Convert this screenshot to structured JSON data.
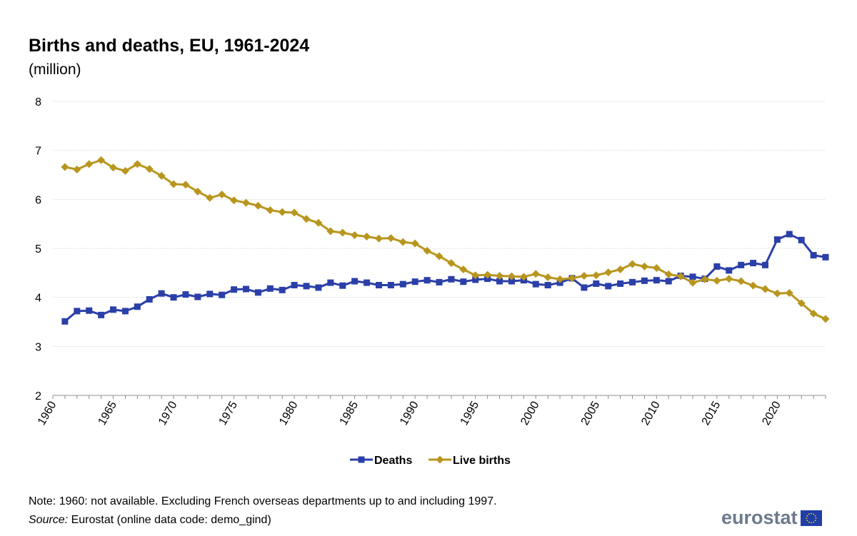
{
  "title": "Births and deaths, EU, 1961-2024",
  "subtitle": "(million)",
  "note": "Note: 1960: not available. Excluding French overseas departments up to and including 1997.",
  "source": {
    "label": "Source:",
    "text": " Eurostat (online data code: demo_gind)"
  },
  "logo": {
    "wordmark": "eurostat"
  },
  "colors": {
    "deaths": "#2b3fa8",
    "live_births": "#b8961e",
    "grid": "#d9d9d9",
    "axis": "#8c8c8c",
    "flag_blue": "#1f3ea8",
    "flag_star": "#ffd400"
  },
  "chart_data": {
    "type": "line",
    "title": "Births and deaths, EU, 1961-2024",
    "subtitle": "(million)",
    "xlim": [
      1960,
      2024
    ],
    "ylim": [
      2,
      8
    ],
    "yticks": [
      2,
      3,
      4,
      5,
      6,
      7,
      8
    ],
    "xticks": [
      1960,
      1965,
      1970,
      1975,
      1980,
      1985,
      1990,
      1995,
      2000,
      2005,
      2010,
      2015,
      2020
    ],
    "grid": true,
    "legend_position": "bottom",
    "x": [
      1961,
      1962,
      1963,
      1964,
      1965,
      1966,
      1967,
      1968,
      1969,
      1970,
      1971,
      1972,
      1973,
      1974,
      1975,
      1976,
      1977,
      1978,
      1979,
      1980,
      1981,
      1982,
      1983,
      1984,
      1985,
      1986,
      1987,
      1988,
      1989,
      1990,
      1991,
      1992,
      1993,
      1994,
      1995,
      1996,
      1997,
      1998,
      1999,
      2000,
      2001,
      2002,
      2003,
      2004,
      2005,
      2006,
      2007,
      2008,
      2009,
      2010,
      2011,
      2012,
      2013,
      2014,
      2015,
      2016,
      2017,
      2018,
      2019,
      2020,
      2021,
      2022,
      2023,
      2024
    ],
    "series": [
      {
        "name": "Deaths",
        "marker": "square",
        "values": [
          3.51,
          3.72,
          3.73,
          3.64,
          3.75,
          3.72,
          3.81,
          3.96,
          4.08,
          4.0,
          4.06,
          4.01,
          4.07,
          4.05,
          4.16,
          4.17,
          4.1,
          4.18,
          4.15,
          4.25,
          4.23,
          4.2,
          4.3,
          4.24,
          4.33,
          4.3,
          4.25,
          4.25,
          4.27,
          4.32,
          4.35,
          4.31,
          4.37,
          4.32,
          4.36,
          4.38,
          4.33,
          4.33,
          4.35,
          4.27,
          4.25,
          4.3,
          4.39,
          4.2,
          4.28,
          4.23,
          4.28,
          4.31,
          4.34,
          4.35,
          4.33,
          4.44,
          4.42,
          4.38,
          4.63,
          4.55,
          4.66,
          4.7,
          4.66,
          5.18,
          5.29,
          5.17,
          4.86,
          4.82
        ]
      },
      {
        "name": "Live births",
        "marker": "diamond",
        "values": [
          6.66,
          6.61,
          6.72,
          6.8,
          6.65,
          6.58,
          6.72,
          6.62,
          6.48,
          6.31,
          6.3,
          6.16,
          6.03,
          6.1,
          5.98,
          5.93,
          5.87,
          5.78,
          5.74,
          5.73,
          5.6,
          5.52,
          5.35,
          5.32,
          5.27,
          5.24,
          5.2,
          5.21,
          5.13,
          5.1,
          4.95,
          4.84,
          4.7,
          4.57,
          4.45,
          4.46,
          4.44,
          4.43,
          4.42,
          4.48,
          4.41,
          4.37,
          4.39,
          4.44,
          4.45,
          4.51,
          4.57,
          4.68,
          4.63,
          4.6,
          4.47,
          4.43,
          4.3,
          4.37,
          4.34,
          4.38,
          4.33,
          4.24,
          4.17,
          4.08,
          4.09,
          3.88,
          3.67,
          3.56
        ]
      }
    ]
  }
}
